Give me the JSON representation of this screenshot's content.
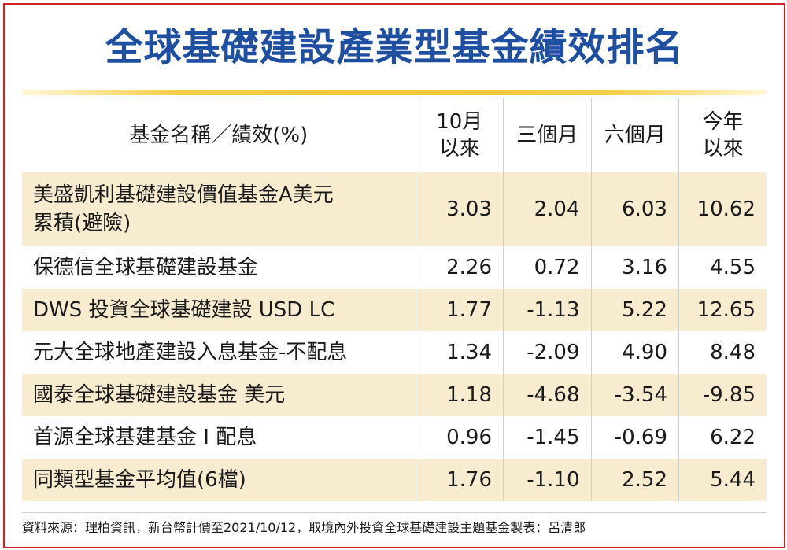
{
  "title": "全球基礎建設產業型基金績效排名",
  "table": {
    "header": {
      "name": "基金名稱／績效(%)",
      "cols": [
        "10月\n以來",
        "三個月",
        "六個月",
        "今年\n以來"
      ]
    },
    "rows": [
      {
        "name": "美盛凱利基礎建設價值基金A美元\n累積(避險)",
        "values": [
          "3.03",
          "2.04",
          "6.03",
          "10.62"
        ],
        "shaded": true
      },
      {
        "name": "保德信全球基礎建設基金",
        "values": [
          "2.26",
          "0.72",
          "3.16",
          "4.55"
        ],
        "shaded": false
      },
      {
        "name": "DWS 投資全球基礎建設 USD LC",
        "values": [
          "1.77",
          "-1.13",
          "5.22",
          "12.65"
        ],
        "shaded": true
      },
      {
        "name": "元大全球地產建設入息基金-不配息",
        "values": [
          "1.34",
          "-2.09",
          "4.90",
          "8.48"
        ],
        "shaded": false
      },
      {
        "name": "國泰全球基礎建設基金 美元",
        "values": [
          "1.18",
          "-4.68",
          "-3.54",
          "-9.85"
        ],
        "shaded": true
      },
      {
        "name": "首源全球基建基金 I 配息",
        "values": [
          "0.96",
          "-1.45",
          "-0.69",
          "6.22"
        ],
        "shaded": false
      },
      {
        "name": "同類型基金平均值(6檔)",
        "values": [
          "1.76",
          "-1.10",
          "2.52",
          "5.44"
        ],
        "shaded": true
      }
    ]
  },
  "source": "資料來源：理柏資訊，新台幣計價至2021/10/12，取境內外投資全球基礎建設主題基金製表：呂清郎",
  "colors": {
    "frame_border": "#d21f2a",
    "title": "#1f4fa0",
    "title_rule": "#f3c632",
    "row_shade": "#f8ecd0"
  }
}
